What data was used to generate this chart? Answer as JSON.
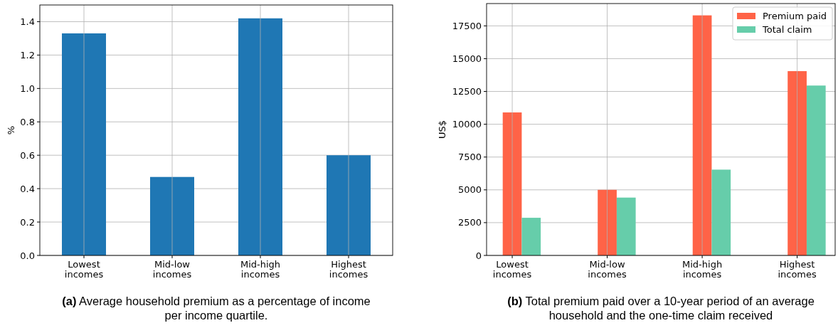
{
  "chart_data": [
    {
      "type": "bar",
      "ylabel": "%",
      "categories": [
        "Lowest incomes",
        "Mid-low incomes",
        "Mid-high incomes",
        "Highest incomes"
      ],
      "values": [
        1.33,
        0.47,
        1.42,
        0.6
      ],
      "color": "#1f77b4",
      "ylim": [
        0,
        1.5
      ],
      "yticks": [
        {
          "value": 0,
          "label": "0.0"
        },
        0.2,
        0.4,
        0.6,
        0.8,
        {
          "value": 1,
          "label": "1.0"
        },
        1.2,
        1.4
      ],
      "grid": true,
      "legend": false,
      "annotations": [
        "(a) Average household premium as a percentage of income per income quartile."
      ]
    },
    {
      "type": "bar",
      "ylabel": "US$",
      "categories": [
        "Lowest incomes",
        "Mid-low incomes",
        "Mid-high incomes",
        "Highest incomes"
      ],
      "series": [
        {
          "name": "Premium paid",
          "color": "#ff6347",
          "values": [
            10900,
            5000,
            18300,
            14050
          ]
        },
        {
          "name": "Total claim",
          "color": "#66cdaa",
          "values": [
            2870,
            4410,
            6540,
            12950
          ]
        }
      ],
      "ylim": [
        0,
        19200
      ],
      "yticks": [
        0,
        2500,
        5000,
        7500,
        10000,
        12500,
        15000,
        17500
      ],
      "grid": true,
      "legend": "top right",
      "annotations": [
        "(b) Total premium paid over a 10-year period of an average household and the one-time claim received"
      ]
    }
  ]
}
